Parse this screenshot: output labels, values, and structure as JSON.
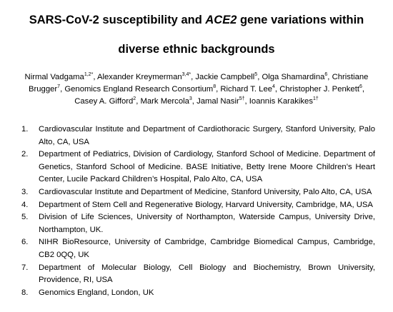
{
  "title": {
    "line1_prefix": "SARS-CoV-2 susceptibility and ",
    "line1_gene": "ACE2",
    "line1_suffix": " gene variations within",
    "line2": "diverse ethnic backgrounds"
  },
  "authors": [
    {
      "name": "Nirmal Vadgama",
      "sup": "1,2*"
    },
    {
      "name": "Alexander Kreymerman",
      "sup": "3,4*"
    },
    {
      "name": "Jackie Campbell",
      "sup": "5"
    },
    {
      "name": "Olga Shamardina",
      "sup": "6"
    },
    {
      "name": "Christiane Brugger",
      "sup": "7"
    },
    {
      "name": "Genomics England Research Consortium",
      "sup": "8"
    },
    {
      "name": "Richard T. Lee",
      "sup": "4"
    },
    {
      "name": "Christopher J. Penkett",
      "sup": "6"
    },
    {
      "name": "Casey A. Gifford",
      "sup": "2"
    },
    {
      "name": "Mark Mercola",
      "sup": "3"
    },
    {
      "name": "Jamal Nasir",
      "sup": "5†"
    },
    {
      "name": "Ioannis Karakikes",
      "sup": "1†"
    }
  ],
  "affiliations": [
    {
      "num": "1.",
      "text": "Cardiovascular Institute and Department of Cardiothoracic Surgery, Stanford University, Palo Alto, CA, USA"
    },
    {
      "num": "2.",
      "text": "Department of Pediatrics, Division of Cardiology, Stanford School of Medicine. Department of Genetics, Stanford School of Medicine. BASE Initiative, Betty Irene Moore Children’s Heart Center, Lucile Packard Children’s Hospital, Palo Alto, CA, USA"
    },
    {
      "num": "3.",
      "text": "Cardiovascular Institute and Department of Medicine, Stanford University, Palo Alto, CA, USA"
    },
    {
      "num": "4.",
      "text": "Department of Stem Cell and Regenerative Biology, Harvard University, Cambridge, MA, USA"
    },
    {
      "num": "5.",
      "text": "Division of Life Sciences, University of Northampton, Waterside Campus, University Drive, Northampton, UK."
    },
    {
      "num": "6.",
      "text": "NIHR BioResource, University of Cambridge, Cambridge Biomedical Campus, Cambridge, CB2 0QQ, UK"
    },
    {
      "num": "7.",
      "text": "Department of Molecular Biology, Cell Biology and Biochemistry, Brown University, Providence, RI, USA"
    },
    {
      "num": "8.",
      "text": "Genomics England, London, UK"
    }
  ]
}
